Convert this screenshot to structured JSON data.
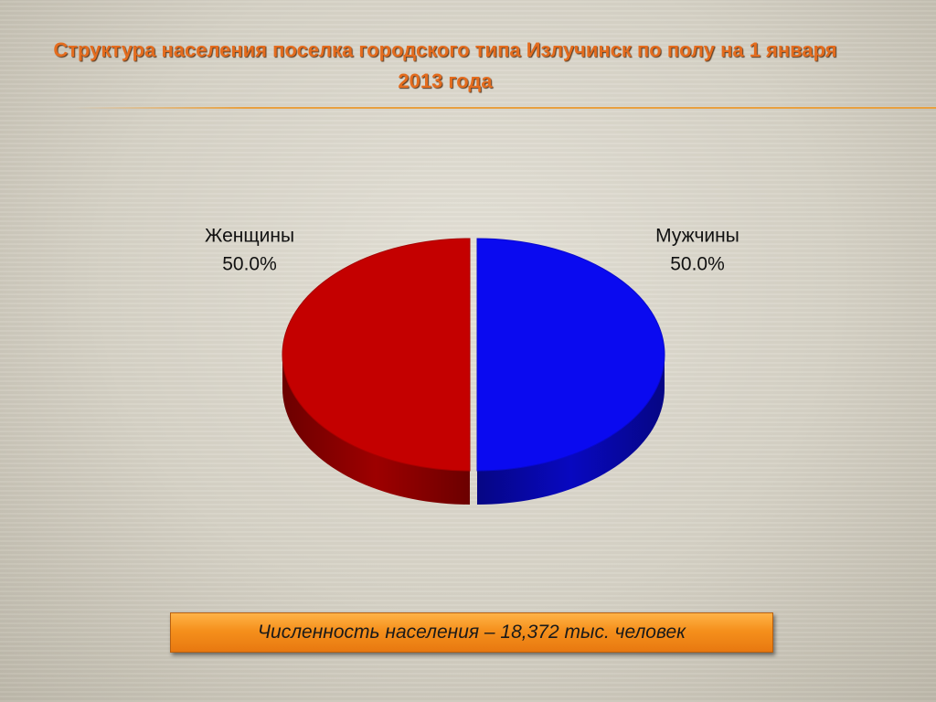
{
  "chart_data": {
    "type": "pie",
    "title": "Структура населения поселка городского типа Излучинск по полу на 1 января 2013 года",
    "categories": [
      "Мужчины",
      "Женщины"
    ],
    "values": [
      50.0,
      50.0
    ],
    "value_labels": [
      "50.0%",
      "50.0%"
    ],
    "colors": [
      "#0a0af0",
      "#c40000"
    ],
    "annotation": "Численность населения – 18,372 тыс. человек"
  }
}
